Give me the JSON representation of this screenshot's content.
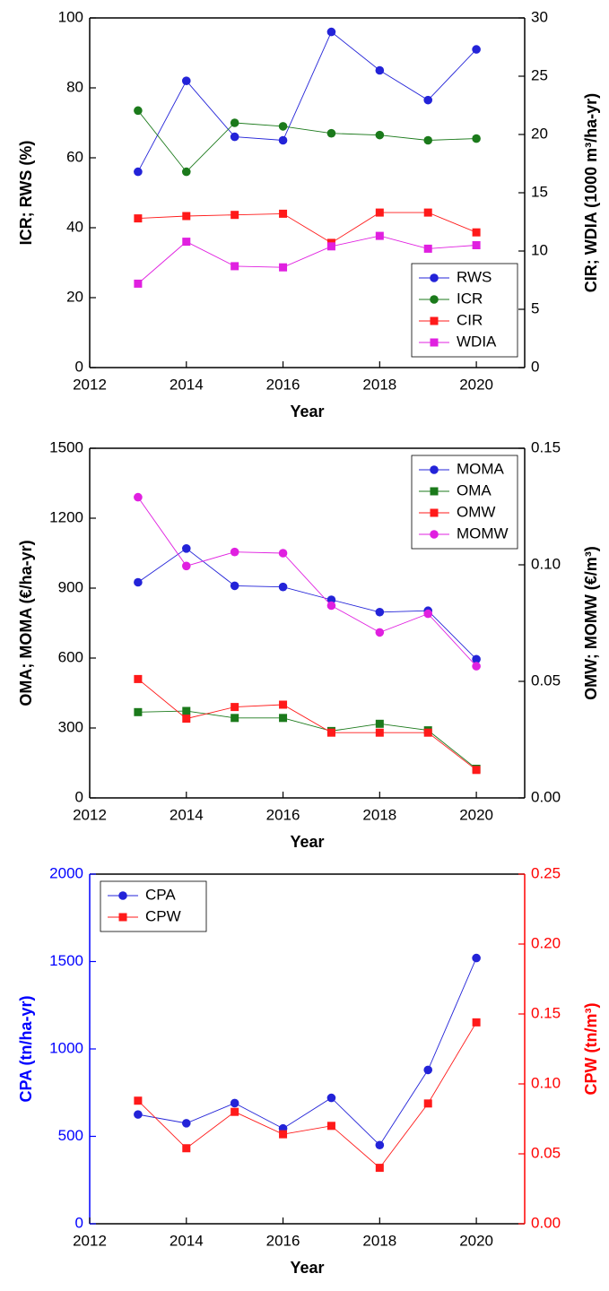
{
  "chart_data": [
    {
      "type": "line",
      "xlabel": "Year",
      "ylabel": "ICR; RWS (%)",
      "y2label": "CIR; WDIA (1000 m³/ha-yr)",
      "x": [
        2013,
        2014,
        2015,
        2016,
        2017,
        2018,
        2019,
        2020
      ],
      "xlim": [
        2012,
        2021
      ],
      "xticks": [
        2012,
        2014,
        2016,
        2018,
        2020
      ],
      "ylim": [
        0,
        100
      ],
      "yticks": [
        0,
        20,
        40,
        60,
        80,
        100
      ],
      "y2lim": [
        0,
        30
      ],
      "y2ticks": [
        0,
        5,
        10,
        15,
        20,
        25,
        30
      ],
      "legend": "lower right",
      "series": [
        {
          "name": "RWS",
          "color": "#2323d8",
          "marker": "circle",
          "axis": "y",
          "values": [
            56,
            82,
            66,
            65,
            96,
            85,
            76.5,
            91
          ]
        },
        {
          "name": "ICR",
          "color": "#1b7a1b",
          "marker": "circle",
          "axis": "y",
          "values": [
            73.5,
            56,
            70,
            69,
            67,
            66.5,
            65,
            65.5
          ]
        },
        {
          "name": "CIR",
          "color": "#ff1a1a",
          "marker": "square",
          "axis": "y2",
          "values": [
            12.8,
            13.0,
            13.1,
            13.2,
            10.7,
            13.3,
            13.3,
            11.6
          ]
        },
        {
          "name": "WDIA",
          "color": "#e020e0",
          "marker": "square",
          "axis": "y2",
          "values": [
            7.2,
            10.8,
            8.7,
            8.6,
            10.4,
            11.3,
            10.2,
            10.5
          ]
        }
      ]
    },
    {
      "type": "line",
      "xlabel": "Year",
      "ylabel": "OMA; MOMA (€/ha-yr)",
      "y2label": "OMW; MOMW (€/m³)",
      "x": [
        2013,
        2014,
        2015,
        2016,
        2017,
        2018,
        2019,
        2020
      ],
      "xlim": [
        2012,
        2021
      ],
      "xticks": [
        2012,
        2014,
        2016,
        2018,
        2020
      ],
      "ylim": [
        0,
        1500
      ],
      "yticks": [
        0,
        300,
        600,
        900,
        1200,
        1500
      ],
      "y2lim": [
        0,
        0.15
      ],
      "y2ticks": [
        {
          "value": 0,
          "label": "0.00"
        },
        0.05,
        {
          "value": 0.1,
          "label": "0.10"
        },
        0.15
      ],
      "legend": "upper right",
      "series": [
        {
          "name": "MOMA",
          "color": "#2323d8",
          "marker": "circle",
          "axis": "y",
          "values": [
            925,
            1070,
            910,
            905,
            850,
            797,
            803,
            595
          ]
        },
        {
          "name": "OMA",
          "color": "#1b7a1b",
          "marker": "square",
          "axis": "y",
          "values": [
            368,
            373,
            343,
            343,
            287,
            318,
            290,
            125
          ]
        },
        {
          "name": "OMW",
          "color": "#ff1a1a",
          "marker": "square",
          "axis": "y2",
          "values": [
            0.051,
            0.034,
            0.039,
            0.04,
            0.028,
            0.028,
            0.028,
            0.012
          ]
        },
        {
          "name": "MOMW",
          "color": "#e020e0",
          "marker": "circle",
          "axis": "y2",
          "values": [
            0.129,
            0.0995,
            0.1055,
            0.105,
            0.0825,
            0.071,
            0.079,
            0.0565
          ]
        }
      ]
    },
    {
      "type": "line",
      "xlabel": "Year",
      "ylabel": "CPA (tn/ha-yr)",
      "y2label": "CPW (tn/m³)",
      "x": [
        2013,
        2014,
        2015,
        2016,
        2017,
        2018,
        2019,
        2020
      ],
      "xlim": [
        2012,
        2021
      ],
      "xticks": [
        2012,
        2014,
        2016,
        2018,
        2020
      ],
      "ylim": [
        0,
        2000
      ],
      "yticks": [
        0,
        500,
        1000,
        1500,
        2000
      ],
      "y2lim": [
        0,
        0.25
      ],
      "y2ticks": [
        {
          "value": 0,
          "label": "0.00"
        },
        0.05,
        {
          "value": 0.1,
          "label": "0.10"
        },
        0.15,
        {
          "value": 0.2,
          "label": "0.20"
        },
        0.25
      ],
      "ycolor": "#0000ff",
      "y2color": "#ff0000",
      "legend": "upper left",
      "series": [
        {
          "name": "CPA",
          "color": "#2323d8",
          "marker": "circle",
          "axis": "y",
          "values": [
            625,
            575,
            690,
            545,
            720,
            450,
            880,
            1520
          ]
        },
        {
          "name": "CPW",
          "color": "#ff1a1a",
          "marker": "square",
          "axis": "y2",
          "values": [
            0.088,
            0.054,
            0.08,
            0.064,
            0.07,
            0.04,
            0.086,
            0.144
          ]
        }
      ]
    }
  ]
}
